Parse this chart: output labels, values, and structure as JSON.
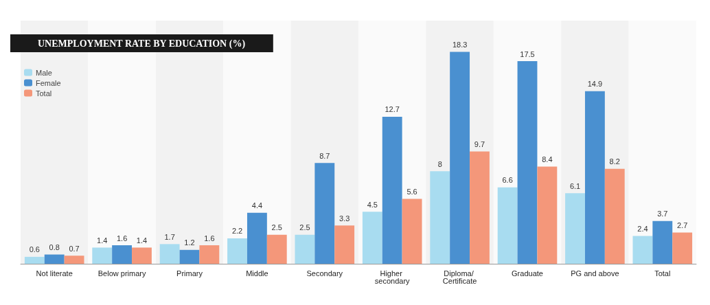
{
  "chart_data": {
    "type": "bar",
    "title": "UNEMPLOYMENT RATE BY EDUCATION (%)",
    "categories": [
      "Not literate",
      "Below primary",
      "Primary",
      "Middle",
      "Secondary",
      "Higher secondary",
      "Diploma/ Certificate",
      "Graduate",
      "PG and above",
      "Total"
    ],
    "series": [
      {
        "name": "Male",
        "color": "#a8dcf0",
        "values": [
          0.6,
          1.4,
          1.7,
          2.2,
          2.5,
          4.5,
          8,
          6.6,
          6.1,
          2.4
        ]
      },
      {
        "name": "Female",
        "color": "#4a90d0",
        "values": [
          0.8,
          1.6,
          1.2,
          4.4,
          8.7,
          12.7,
          18.3,
          17.5,
          14.9,
          3.7
        ]
      },
      {
        "name": "Total",
        "color": "#f4977a",
        "values": [
          0.7,
          1.4,
          1.6,
          2.5,
          3.3,
          5.6,
          9.7,
          8.4,
          8.2,
          2.7
        ]
      }
    ],
    "data_labels": true,
    "legend": "top left"
  }
}
